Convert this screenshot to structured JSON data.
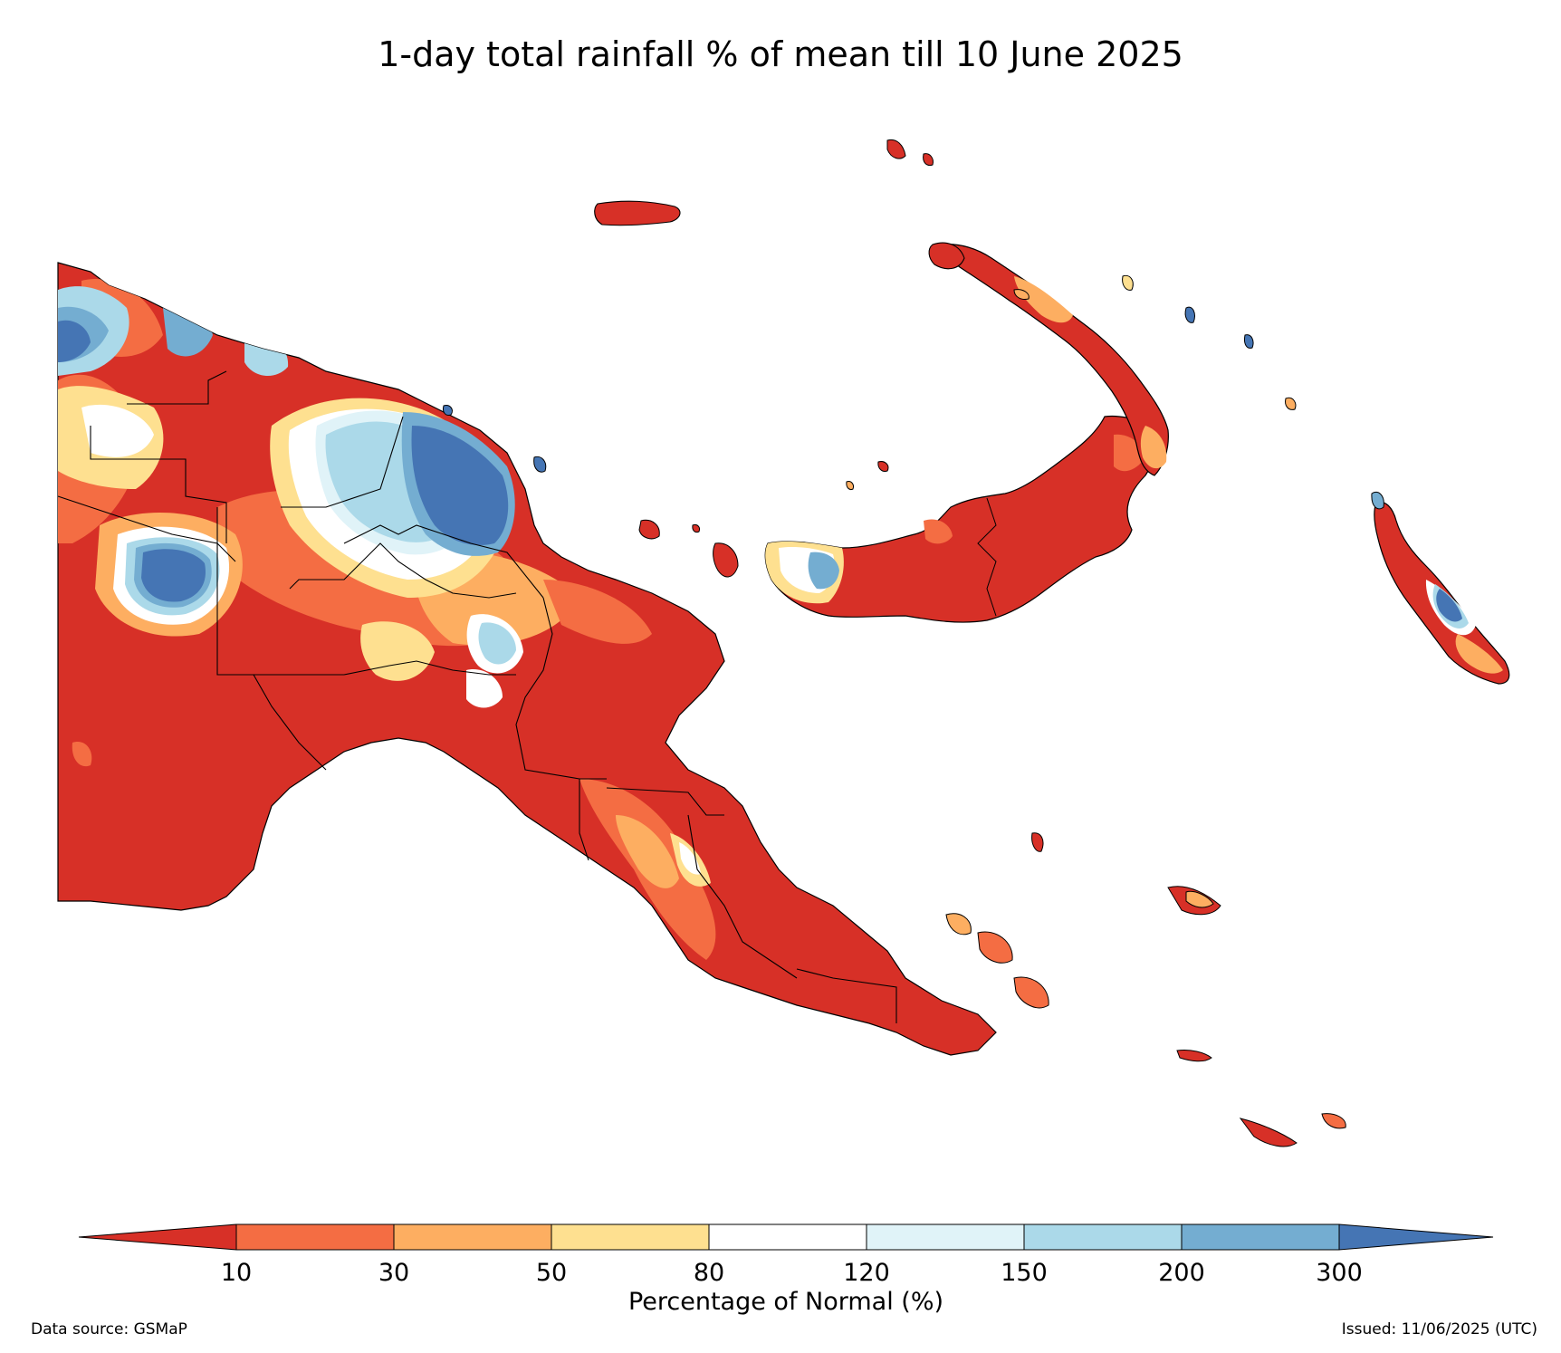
{
  "title": "1-day total rainfall % of mean till 10 June 2025",
  "legend": {
    "title": "Percentage of Normal (%)",
    "ticks": [
      "10",
      "30",
      "50",
      "80",
      "120",
      "150",
      "200",
      "300"
    ],
    "colors": {
      "below_10": "#d73027",
      "10_30": "#f46d43",
      "30_50": "#fdae61",
      "50_80": "#fee090",
      "80_120": "#ffffff",
      "120_150": "#e0f3f8",
      "150_200": "#abd9e9",
      "200_300": "#74add1",
      "above_300": "#4575b4"
    }
  },
  "footer": {
    "source": "Data source: GSMaP",
    "issued": "Issued: 11/06/2025 (UTC)"
  }
}
